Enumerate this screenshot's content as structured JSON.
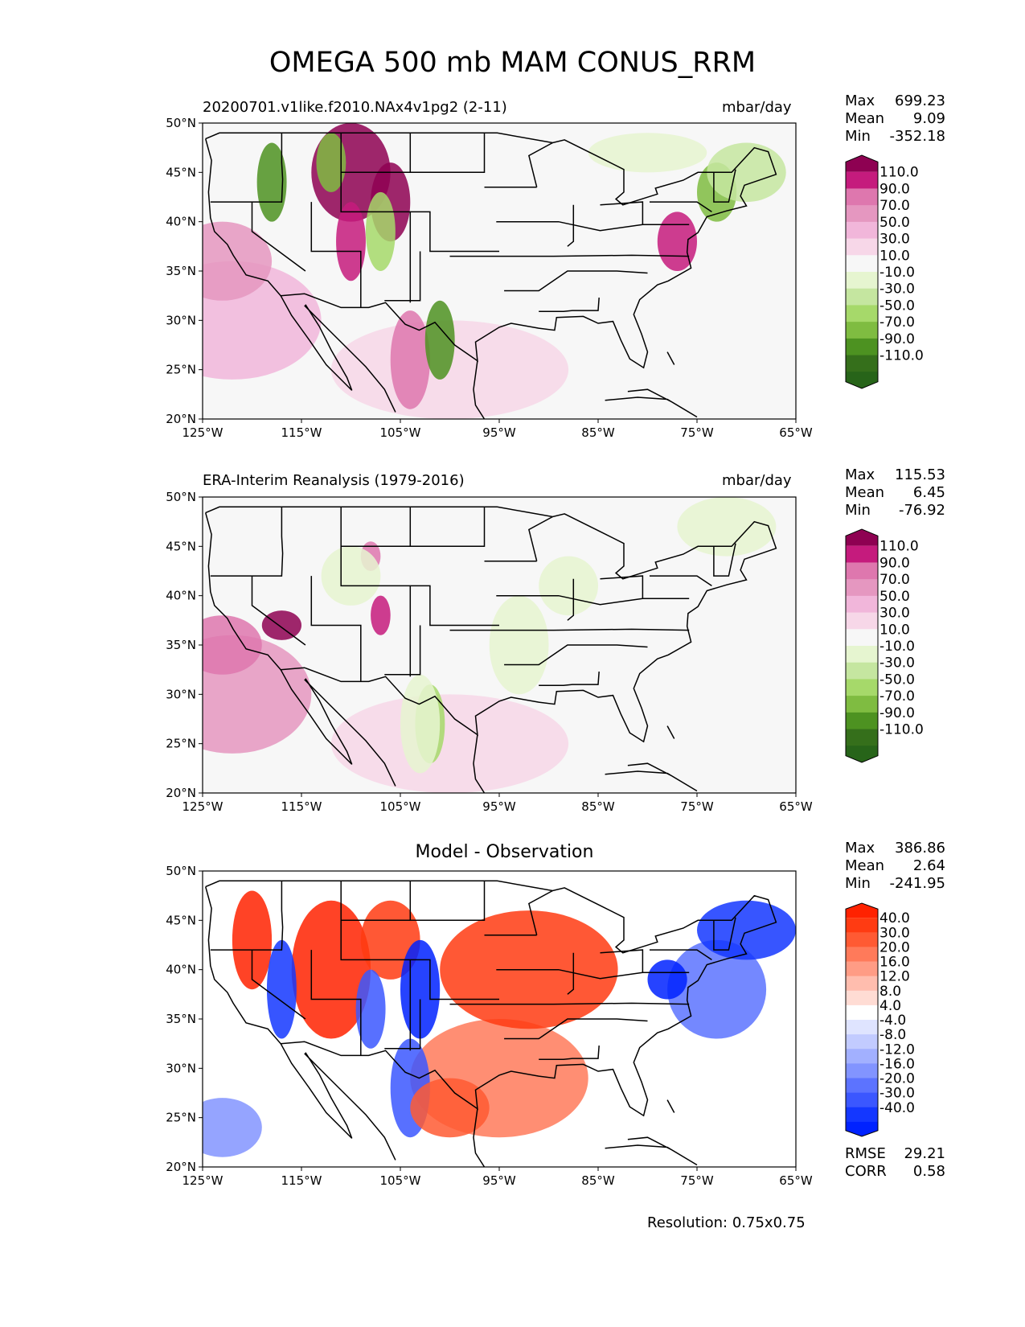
{
  "title": "OMEGA 500 mb MAM CONUS_RRM",
  "resolution": "Resolution: 0.75x0.75",
  "panels": [
    {
      "left_title": "20200701.v1like.f2010.NAx4v1pg2 (2-11)",
      "center_title": "",
      "units": "mbar/day",
      "stats": {
        "max_label": "Max",
        "max": "699.23",
        "mean_label": "Mean",
        "mean": "9.09",
        "min_label": "Min",
        "min": "-352.18"
      },
      "colorbar": {
        "labels": [
          "110.0",
          "90.0",
          "70.0",
          "50.0",
          "30.0",
          "10.0",
          "-10.0",
          "-30.0",
          "-50.0",
          "-70.0",
          "-90.0",
          "-110.0"
        ],
        "colors": [
          "#8e0152",
          "#c51b7d",
          "#de77ae",
          "#e597c0",
          "#f1b6da",
          "#f7d7e8",
          "#f7f7f7",
          "#e6f5d0",
          "#c5e6a0",
          "#a6d96a",
          "#7fbc41",
          "#4d9221",
          "#356f1b",
          "#276419"
        ]
      }
    },
    {
      "left_title": "ERA-Interim Reanalysis (1979-2016)",
      "center_title": "",
      "units": "mbar/day",
      "stats": {
        "max_label": "Max",
        "max": "115.53",
        "mean_label": "Mean",
        "mean": "6.45",
        "min_label": "Min",
        "min": "-76.92"
      },
      "colorbar": {
        "labels": [
          "110.0",
          "90.0",
          "70.0",
          "50.0",
          "30.0",
          "10.0",
          "-10.0",
          "-30.0",
          "-50.0",
          "-70.0",
          "-90.0",
          "-110.0"
        ],
        "colors": [
          "#8e0152",
          "#c51b7d",
          "#de77ae",
          "#e597c0",
          "#f1b6da",
          "#f7d7e8",
          "#f7f7f7",
          "#e6f5d0",
          "#c5e6a0",
          "#a6d96a",
          "#7fbc41",
          "#4d9221",
          "#356f1b",
          "#276419"
        ]
      }
    },
    {
      "left_title": "",
      "center_title": "Model - Observation",
      "units": "",
      "stats": {
        "max_label": "Max",
        "max": "386.86",
        "mean_label": "Mean",
        "mean": "2.64",
        "min_label": "Min",
        "min": "-241.95"
      },
      "extra_stats": {
        "rmse_label": "RMSE",
        "rmse": "29.21",
        "corr_label": "CORR",
        "corr": "0.58"
      },
      "colorbar": {
        "labels": [
          "40.0",
          "30.0",
          "20.0",
          "16.0",
          "12.0",
          "8.0",
          "4.0",
          "-4.0",
          "-8.0",
          "-12.0",
          "-16.0",
          "-20.0",
          "-30.0",
          "-40.0"
        ],
        "colors": [
          "#ff2200",
          "#ff3b12",
          "#ff5a33",
          "#ff7a5a",
          "#ff9c85",
          "#ffbdae",
          "#ffdcd4",
          "#ffffff",
          "#dfe4ff",
          "#c2cbff",
          "#a2b0ff",
          "#8294ff",
          "#5c73ff",
          "#3b57ff",
          "#1437ff",
          "#0022ff"
        ]
      }
    }
  ],
  "chart_data": [
    {
      "type": "heatmap",
      "title": "20200701.v1like.f2010.NAx4v1pg2 (2-11)",
      "units": "mbar/day",
      "variable": "OMEGA 500 mb",
      "season": "MAM",
      "x_ticks": [
        "125°W",
        "115°W",
        "105°W",
        "95°W",
        "85°W",
        "75°W",
        "65°W"
      ],
      "y_ticks": [
        "50°N",
        "45°N",
        "40°N",
        "35°N",
        "30°N",
        "25°N",
        "20°N"
      ],
      "xlim": [
        -125,
        -65
      ],
      "ylim": [
        20,
        50
      ],
      "max": 699.23,
      "mean": 9.09,
      "min": -352.18,
      "levels": [
        -110,
        -90,
        -70,
        -50,
        -30,
        -10,
        10,
        30,
        50,
        70,
        90,
        110
      ]
    },
    {
      "type": "heatmap",
      "title": "ERA-Interim Reanalysis (1979-2016)",
      "units": "mbar/day",
      "x_ticks": [
        "125°W",
        "115°W",
        "105°W",
        "95°W",
        "85°W",
        "75°W",
        "65°W"
      ],
      "y_ticks": [
        "50°N",
        "45°N",
        "40°N",
        "35°N",
        "30°N",
        "25°N",
        "20°N"
      ],
      "xlim": [
        -125,
        -65
      ],
      "ylim": [
        20,
        50
      ],
      "max": 115.53,
      "mean": 6.45,
      "min": -76.92,
      "levels": [
        -110,
        -90,
        -70,
        -50,
        -30,
        -10,
        10,
        30,
        50,
        70,
        90,
        110
      ]
    },
    {
      "type": "heatmap",
      "title": "Model - Observation",
      "x_ticks": [
        "125°W",
        "115°W",
        "105°W",
        "95°W",
        "85°W",
        "75°W",
        "65°W"
      ],
      "y_ticks": [
        "50°N",
        "45°N",
        "40°N",
        "35°N",
        "30°N",
        "25°N",
        "20°N"
      ],
      "xlim": [
        -125,
        -65
      ],
      "ylim": [
        20,
        50
      ],
      "max": 386.86,
      "mean": 2.64,
      "min": -241.95,
      "rmse": 29.21,
      "corr": 0.58,
      "levels": [
        -40,
        -30,
        -20,
        -16,
        -12,
        -8,
        -4,
        4,
        8,
        12,
        16,
        20,
        30,
        40
      ]
    }
  ]
}
